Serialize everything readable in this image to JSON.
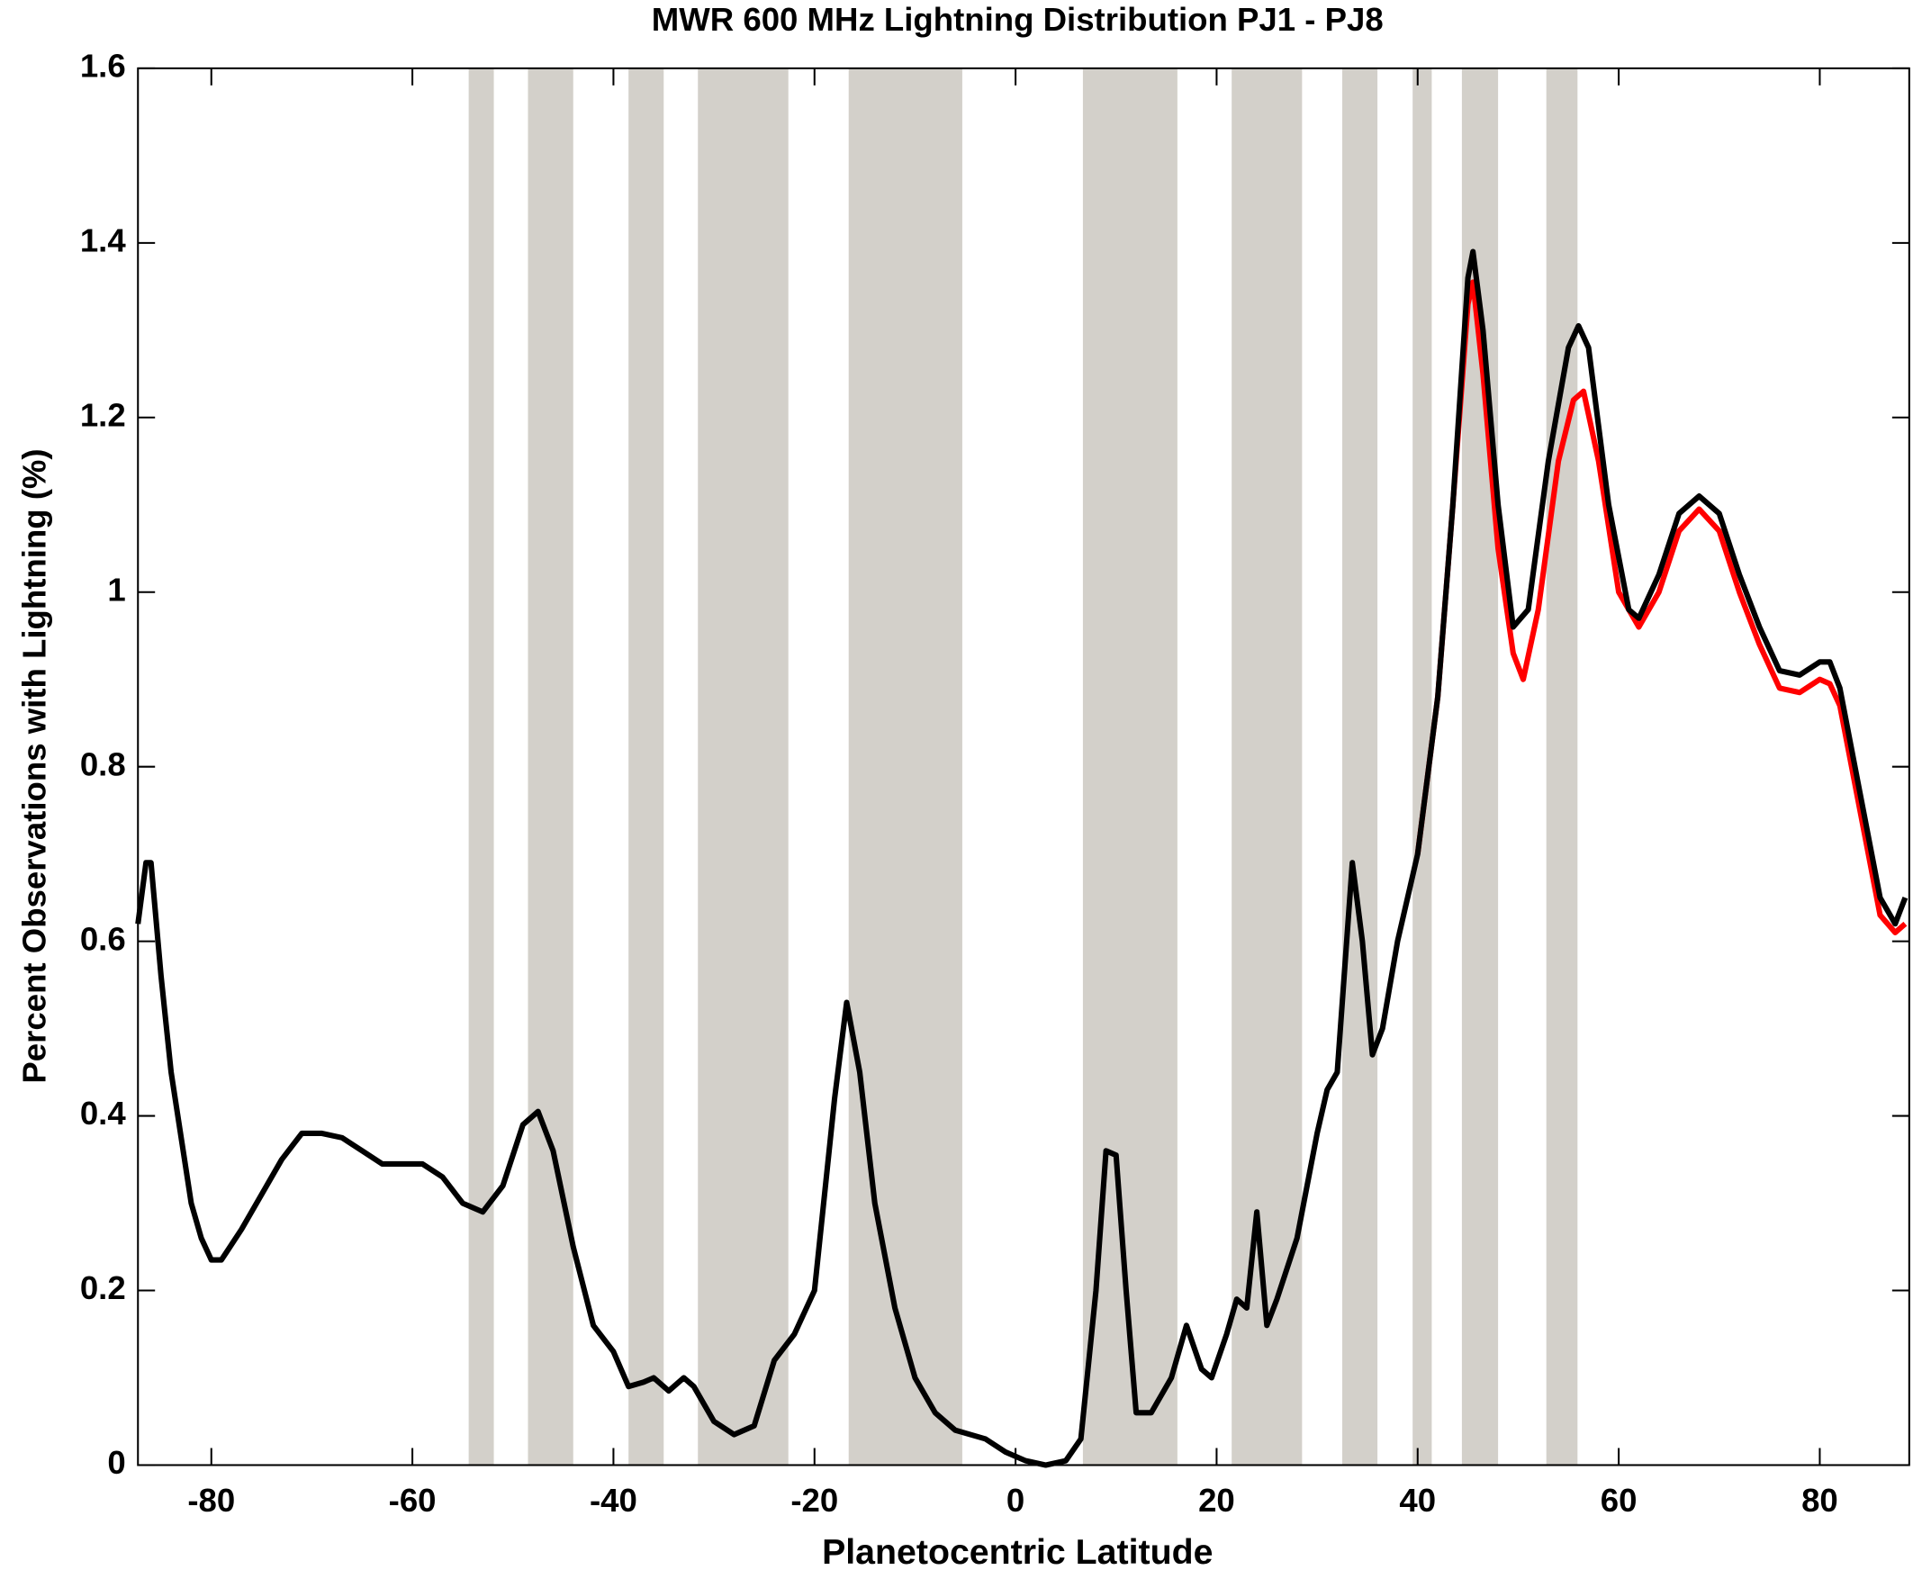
{
  "chart_data": {
    "type": "line",
    "title": "MWR 600 MHz Lightning Distribution PJ1 - PJ8",
    "x_label": "Planetocentric Latitude",
    "y_label": "Percent Observations with Lightning (%)",
    "xlim": [
      -87.3,
      88.9
    ],
    "ylim": [
      0,
      1.6
    ],
    "xticks": [
      -80,
      -60,
      -40,
      -20,
      0,
      20,
      40,
      60,
      80
    ],
    "yticks": [
      0,
      0.2,
      0.4,
      0.6,
      0.8,
      1,
      1.2,
      1.4,
      1.6
    ],
    "shaded_color": "#d3d0ca",
    "shaded_regions": [
      [
        -54.4,
        -51.9
      ],
      [
        -48.5,
        -44.0
      ],
      [
        -38.5,
        -35.0
      ],
      [
        -31.6,
        -22.6
      ],
      [
        -16.6,
        -5.3
      ],
      [
        6.7,
        16.1
      ],
      [
        21.5,
        28.5
      ],
      [
        32.5,
        36.0
      ],
      [
        39.5,
        41.4
      ],
      [
        44.4,
        48.0
      ],
      [
        52.8,
        55.9
      ]
    ],
    "series": [
      {
        "color": "#ff0000",
        "x": [
          40,
          42,
          43.5,
          45,
          45.5,
          46.5,
          48,
          49.5,
          50.5,
          52,
          54,
          55.5,
          56.5,
          58,
          60,
          62,
          64,
          66,
          68,
          70,
          72,
          74,
          76,
          78,
          80,
          81,
          82,
          84,
          86,
          87.5,
          88.5
        ],
        "values": [
          0.7,
          0.88,
          1.1,
          1.33,
          1.355,
          1.25,
          1.05,
          0.93,
          0.9,
          0.98,
          1.15,
          1.22,
          1.23,
          1.15,
          1.0,
          0.96,
          1.0,
          1.07,
          1.095,
          1.07,
          1.0,
          0.94,
          0.89,
          0.885,
          0.9,
          0.895,
          0.87,
          0.75,
          0.63,
          0.61,
          0.62
        ]
      },
      {
        "color": "#000000",
        "x": [
          -87.3,
          -86.5,
          -86,
          -85,
          -84,
          -82,
          -81,
          -80,
          -79,
          -77,
          -75,
          -73,
          -71,
          -69,
          -67,
          -65,
          -63,
          -61,
          -59,
          -57,
          -55,
          -53,
          -51,
          -49,
          -47.5,
          -46,
          -44,
          -42,
          -40,
          -38.5,
          -37,
          -36,
          -34.5,
          -33,
          -32,
          -30,
          -28,
          -26,
          -24,
          -22,
          -20,
          -18,
          -16.8,
          -15.5,
          -14,
          -12,
          -10,
          -8,
          -6,
          -3,
          -1,
          1,
          3,
          5,
          6.5,
          8,
          9,
          10,
          11,
          12,
          13.5,
          15.5,
          17,
          18.5,
          19.5,
          21,
          22,
          23,
          24,
          25,
          26,
          28,
          30,
          31,
          32,
          33.5,
          34.5,
          35.5,
          36.5,
          38,
          40,
          42,
          43.5,
          45,
          45.5,
          46.5,
          48,
          49.5,
          51,
          53,
          55,
          56,
          57,
          59,
          61,
          62,
          64,
          66,
          68,
          70,
          72,
          74,
          76,
          78,
          80,
          81,
          82,
          84,
          86,
          87.5,
          88.5
        ],
        "values": [
          0.62,
          0.69,
          0.69,
          0.56,
          0.45,
          0.3,
          0.26,
          0.235,
          0.235,
          0.27,
          0.31,
          0.35,
          0.38,
          0.38,
          0.375,
          0.36,
          0.345,
          0.345,
          0.345,
          0.33,
          0.3,
          0.29,
          0.32,
          0.39,
          0.405,
          0.36,
          0.25,
          0.16,
          0.13,
          0.09,
          0.095,
          0.1,
          0.085,
          0.1,
          0.09,
          0.05,
          0.035,
          0.045,
          0.12,
          0.15,
          0.2,
          0.42,
          0.53,
          0.45,
          0.3,
          0.18,
          0.1,
          0.06,
          0.04,
          0.03,
          0.015,
          0.005,
          0,
          0.005,
          0.03,
          0.2,
          0.36,
          0.355,
          0.2,
          0.06,
          0.06,
          0.1,
          0.16,
          0.11,
          0.1,
          0.15,
          0.19,
          0.18,
          0.29,
          0.16,
          0.19,
          0.26,
          0.38,
          0.43,
          0.45,
          0.69,
          0.6,
          0.47,
          0.5,
          0.6,
          0.7,
          0.88,
          1.1,
          1.36,
          1.39,
          1.3,
          1.1,
          0.96,
          0.98,
          1.15,
          1.28,
          1.305,
          1.28,
          1.1,
          0.98,
          0.97,
          1.02,
          1.09,
          1.11,
          1.09,
          1.02,
          0.96,
          0.91,
          0.905,
          0.92,
          0.92,
          0.89,
          0.77,
          0.65,
          0.62,
          0.65
        ]
      }
    ]
  }
}
